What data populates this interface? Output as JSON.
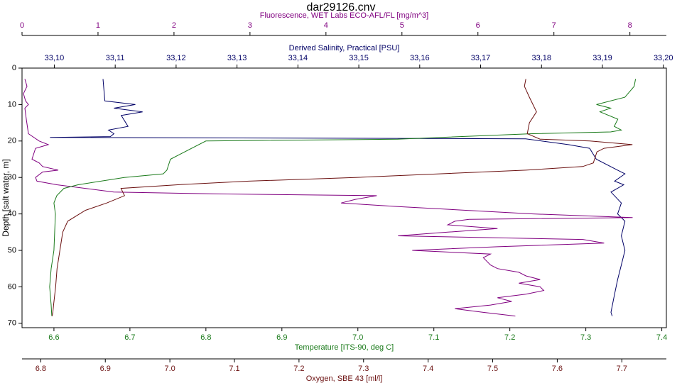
{
  "chart_data": {
    "type": "line",
    "title": "dar29126.cnv",
    "ylabel": "Depth [salt water, m]",
    "ylim": [
      0,
      71.2
    ],
    "yticks": [
      0,
      10,
      20,
      30,
      40,
      50,
      60,
      70
    ],
    "y_inverted": true,
    "grid": false,
    "series": [
      {
        "name": "Fluorescence, WET Labs ECO-AFL/FL [mg/m^3]",
        "color": "#800080",
        "side": "top",
        "xlim": [
          0,
          8.48
        ],
        "xticks": [
          0,
          1,
          2,
          3,
          4,
          5,
          6,
          7,
          8
        ],
        "depth": [
          3,
          5,
          7,
          9,
          10,
          11,
          14,
          18,
          20,
          21,
          22,
          25,
          26,
          27,
          28,
          28.5,
          30,
          31,
          32,
          34,
          34.5,
          35,
          36,
          37,
          38,
          40,
          41,
          41.5,
          42,
          43,
          44,
          45,
          46,
          47,
          48,
          49,
          50,
          51,
          52,
          54,
          55,
          56,
          57,
          58,
          59,
          60,
          61,
          62,
          63,
          64,
          65,
          66,
          67,
          68
        ],
        "values": [
          0.037,
          0.065,
          0.019,
          0.047,
          0.084,
          0.037,
          0.056,
          0.084,
          0.225,
          0.346,
          0.178,
          0.131,
          0.225,
          0.271,
          0.477,
          0.271,
          0.178,
          0.196,
          0.458,
          1.207,
          2.516,
          4.668,
          4.387,
          4.2,
          4.949,
          6.726,
          8.036,
          5.884,
          5.697,
          5.603,
          6.258,
          5.603,
          4.949,
          7.381,
          7.661,
          6.258,
          5.136,
          6.165,
          6.071,
          6.165,
          6.258,
          6.539,
          6.632,
          6.819,
          6.539,
          6.819,
          6.866,
          6.632,
          6.258,
          6.445,
          6.165,
          5.697,
          6.071,
          6.492
        ]
      },
      {
        "name": "Derived Salinity, Practical [PSU]",
        "color": "#000066",
        "side": "top",
        "xlim": [
          33.0947,
          33.2005
        ],
        "xticks": [
          {
            "value": 33.1,
            "label": "33,10"
          },
          {
            "value": 33.11,
            "label": "33,11"
          },
          {
            "value": 33.12,
            "label": "33,12"
          },
          {
            "value": 33.13,
            "label": "33,13"
          },
          {
            "value": 33.14,
            "label": "33,14"
          },
          {
            "value": 33.15,
            "label": "33,15"
          },
          {
            "value": 33.16,
            "label": "33,16"
          },
          {
            "value": 33.17,
            "label": "33,17"
          },
          {
            "value": 33.18,
            "label": "33,18"
          },
          {
            "value": 33.19,
            "label": "33,19"
          },
          {
            "value": 33.2,
            "label": "33,20"
          }
        ],
        "depth": [
          3,
          9,
          10,
          11,
          12,
          13,
          16,
          17,
          18,
          18.8,
          19,
          19.4,
          21,
          22,
          25,
          28,
          29,
          31,
          32,
          34,
          37,
          40,
          42,
          46,
          50,
          54,
          58,
          62,
          67,
          68
        ],
        "values": [
          33.108,
          33.1083,
          33.1133,
          33.1098,
          33.1145,
          33.111,
          33.1121,
          33.1089,
          33.1098,
          33.1092,
          33.0993,
          33.1774,
          33.1844,
          33.1879,
          33.189,
          33.1925,
          33.1937,
          33.192,
          33.1935,
          33.1914,
          33.1931,
          33.1925,
          33.1937,
          33.1931,
          33.1937,
          33.1931,
          33.1925,
          33.192,
          33.1914,
          33.1916
        ]
      },
      {
        "name": "Temperature [ITS-90, deg C]",
        "color": "#1a7a1a",
        "side": "bottom",
        "xlim": [
          6.558,
          7.406
        ],
        "xticks": [
          6.6,
          6.7,
          6.8,
          6.9,
          {
            "value": 7,
            "label": "7.0"
          },
          7.1,
          7.2,
          7.3,
          7.4
        ],
        "depth": [
          3,
          5,
          8,
          10,
          11,
          12,
          14,
          16,
          17,
          17.5,
          18,
          19.5,
          20,
          25,
          28,
          29,
          30,
          32,
          33,
          35,
          37,
          40,
          50,
          55,
          60,
          65,
          68
        ],
        "values": [
          7.3654,
          7.3636,
          7.3514,
          7.314,
          7.3327,
          7.3187,
          7.3421,
          7.3374,
          7.3467,
          7.3327,
          7.2299,
          7.0523,
          6.8,
          6.7533,
          6.7486,
          6.7439,
          6.6925,
          6.6318,
          6.6131,
          6.6037,
          6.6,
          6.6019,
          6.6,
          6.5963,
          6.5944,
          6.5963,
          6.5972
        ]
      },
      {
        "name": "Oxygen, SBE 43 [ml/l]",
        "color": "#6b1010",
        "side": "bottom",
        "xlim": [
          6.771,
          7.769
        ],
        "xticks": [
          6.8,
          6.9,
          {
            "value": 7,
            "label": "7.0"
          },
          7.1,
          7.2,
          7.3,
          7.4,
          7.5,
          7.6,
          7.7
        ],
        "depth": [
          3,
          5,
          8,
          10,
          12,
          15,
          18,
          19.5,
          20,
          21,
          22,
          23,
          26,
          27,
          28,
          30,
          31,
          32,
          33,
          35,
          37,
          39,
          42,
          45,
          50,
          55,
          60,
          65,
          67,
          68
        ],
        "values": [
          7.5514,
          7.5492,
          7.5569,
          7.5624,
          7.5679,
          7.5569,
          7.5536,
          7.5734,
          7.6504,
          7.7164,
          7.6724,
          7.6614,
          7.6559,
          7.6394,
          7.5514,
          7.2873,
          7.1223,
          7.0123,
          6.9243,
          6.9298,
          6.9023,
          6.8693,
          6.8418,
          6.8341,
          6.8297,
          6.8253,
          6.8231,
          6.8198,
          6.8187,
          6.8176
        ]
      }
    ]
  }
}
